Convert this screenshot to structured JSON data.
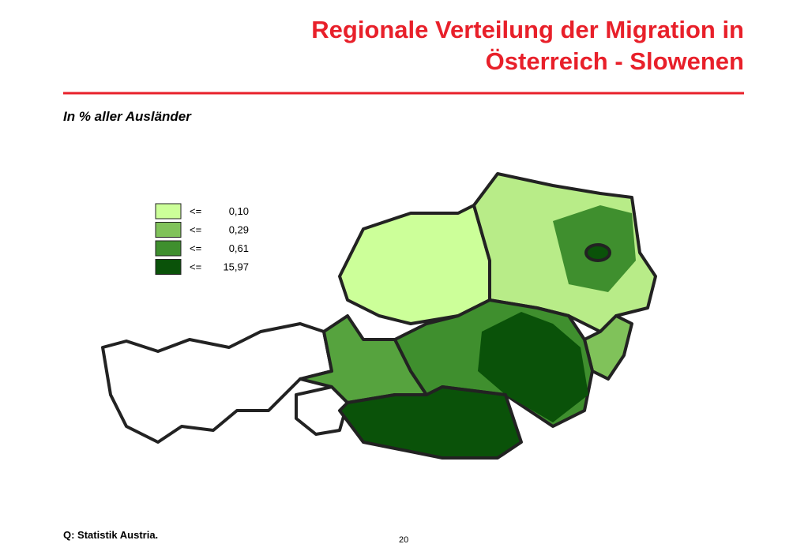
{
  "header": {
    "title_lines": [
      "Regionale Verteilung der Migration in",
      "Österreich - Slowenen"
    ],
    "subtitle": "In % aller Ausländer"
  },
  "legend": {
    "items": [
      {
        "op": "<=",
        "label": "0,10",
        "color": "#ccff99"
      },
      {
        "op": "<=",
        "label": "0,29",
        "color": "#80c25a"
      },
      {
        "op": "<=",
        "label": "0,61",
        "color": "#3f8f2e"
      },
      {
        "op": "<=",
        "label": "15,97",
        "color": "#0a5209"
      }
    ]
  },
  "footer": {
    "source": "Q: Statistik Austria.",
    "page": "20"
  }
}
